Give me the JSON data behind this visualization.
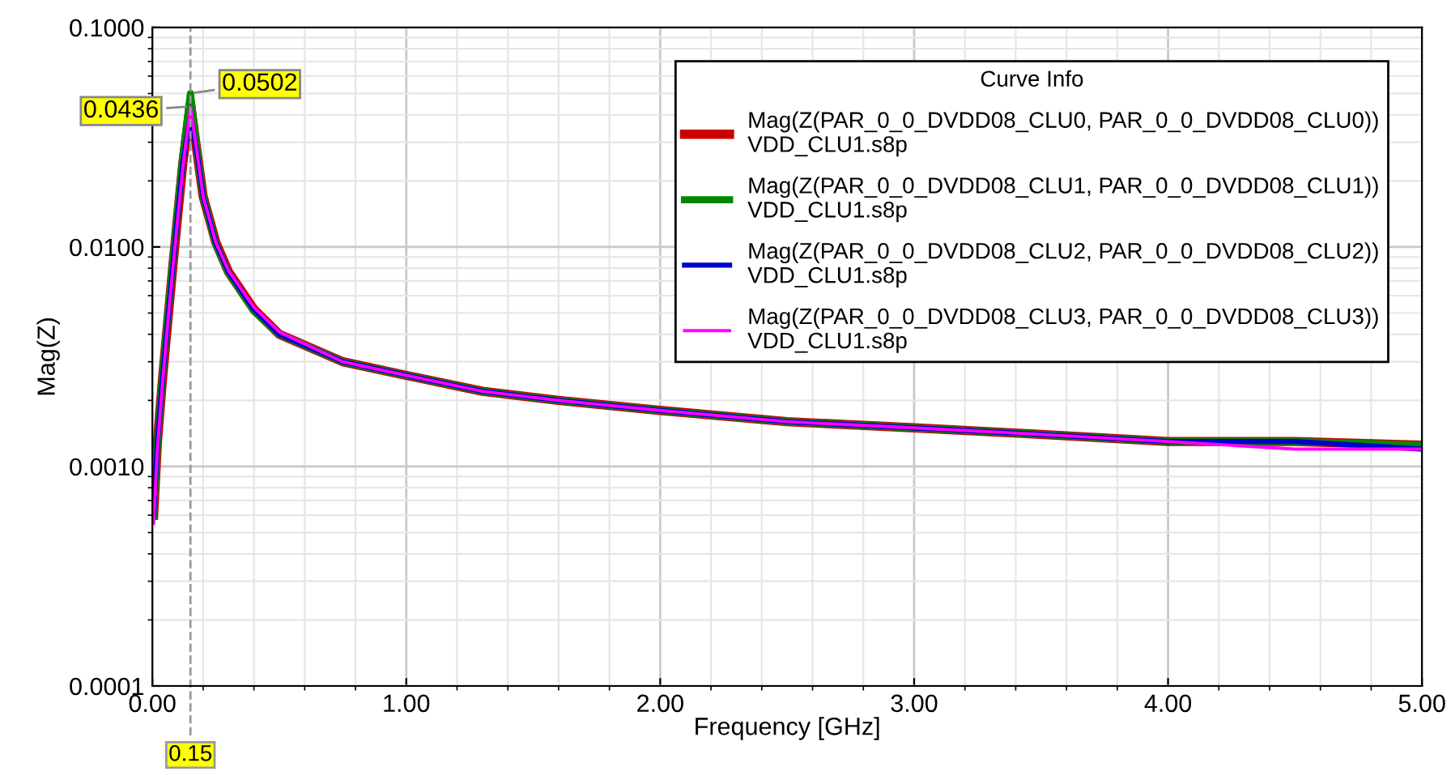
{
  "chart_data": {
    "type": "line",
    "xlabel": "Frequency [GHz]",
    "ylabel": "Mag(Z)",
    "legend_title": "Curve Info",
    "x": [
      0.005,
      0.02,
      0.04,
      0.06,
      0.08,
      0.1,
      0.12,
      0.15,
      0.18,
      0.2,
      0.25,
      0.3,
      0.4,
      0.5,
      0.75,
      1.0,
      1.3,
      1.6,
      2.0,
      2.5,
      3.0,
      3.5,
      4.0,
      4.5,
      5.0
    ],
    "series": [
      {
        "name": "Mag(Z(PAR_0_0_DVDD08_CLU0, PAR_0_0_DVDD08_CLU0))\nVDD_CLU1.s8p",
        "color": "#cc0000",
        "values": [
          0.0006,
          0.0013,
          0.0025,
          0.0045,
          0.008,
          0.014,
          0.024,
          0.045,
          0.025,
          0.017,
          0.0105,
          0.0077,
          0.0052,
          0.004,
          0.003,
          0.0026,
          0.0022,
          0.002,
          0.0018,
          0.0016,
          0.0015,
          0.0014,
          0.0013,
          0.0013,
          0.00125
        ]
      },
      {
        "name": "Mag(Z(PAR_0_0_DVDD08_CLU1, PAR_0_0_DVDD08_CLU1))\nVDD_CLU1.s8p",
        "color": "#008800",
        "values": [
          0.0006,
          0.0013,
          0.0026,
          0.0047,
          0.0085,
          0.015,
          0.026,
          0.05,
          0.025,
          0.017,
          0.0103,
          0.0076,
          0.0051,
          0.004,
          0.003,
          0.0026,
          0.0022,
          0.002,
          0.0018,
          0.0016,
          0.0015,
          0.0014,
          0.0013,
          0.0013,
          0.00125
        ]
      },
      {
        "name": "Mag(Z(PAR_0_0_DVDD08_CLU2, PAR_0_0_DVDD08_CLU2))\nVDD_CLU1.s8p",
        "color": "#0000cc",
        "values": [
          0.0006,
          0.0013,
          0.0025,
          0.0045,
          0.008,
          0.014,
          0.024,
          0.04,
          0.025,
          0.017,
          0.0104,
          0.0077,
          0.0052,
          0.004,
          0.003,
          0.0026,
          0.0022,
          0.002,
          0.0018,
          0.0016,
          0.0015,
          0.0014,
          0.0013,
          0.0013,
          0.0012
        ]
      },
      {
        "name": "Mag(Z(PAR_0_0_DVDD08_CLU3, PAR_0_0_DVDD08_CLU3))\nVDD_CLU1.s8p",
        "color": "#ff00ff",
        "values": [
          0.00055,
          0.0012,
          0.0024,
          0.0044,
          0.0078,
          0.0135,
          0.023,
          0.0436,
          0.025,
          0.017,
          0.0105,
          0.0078,
          0.0053,
          0.0041,
          0.003,
          0.0026,
          0.0022,
          0.002,
          0.0018,
          0.0016,
          0.0015,
          0.0014,
          0.0013,
          0.0012,
          0.0012
        ]
      }
    ],
    "annotations": [
      {
        "text": "0.0502",
        "x": 0.15,
        "y": 0.0502
      },
      {
        "text": "0.0436",
        "x": 0.15,
        "y": 0.0436
      }
    ],
    "ref_lines": [
      {
        "axis": "x",
        "value": 0.15,
        "label": "0.15",
        "color": "#999999",
        "line_style": "dashed"
      }
    ],
    "xlim": [
      0,
      5
    ],
    "xticks": [
      {
        "value": 0,
        "label": "0.00"
      },
      {
        "value": 1,
        "label": "1.00"
      },
      {
        "value": 2,
        "label": "2.00"
      },
      {
        "value": 3,
        "label": "3.00"
      },
      {
        "value": 4,
        "label": "4.00"
      },
      {
        "value": 5,
        "label": "5.00"
      }
    ],
    "ylim": [
      0.0001,
      0.1
    ],
    "yticks": [
      {
        "value": 0.0001,
        "label": "0.0001"
      },
      {
        "value": 0.001,
        "label": "0.0010"
      },
      {
        "value": 0.01,
        "label": "0.0100"
      },
      {
        "value": 0.1,
        "label": "0.1000"
      }
    ],
    "log": "y",
    "grid": true,
    "legend": "top right",
    "line_style": "solid",
    "marker": "none"
  }
}
